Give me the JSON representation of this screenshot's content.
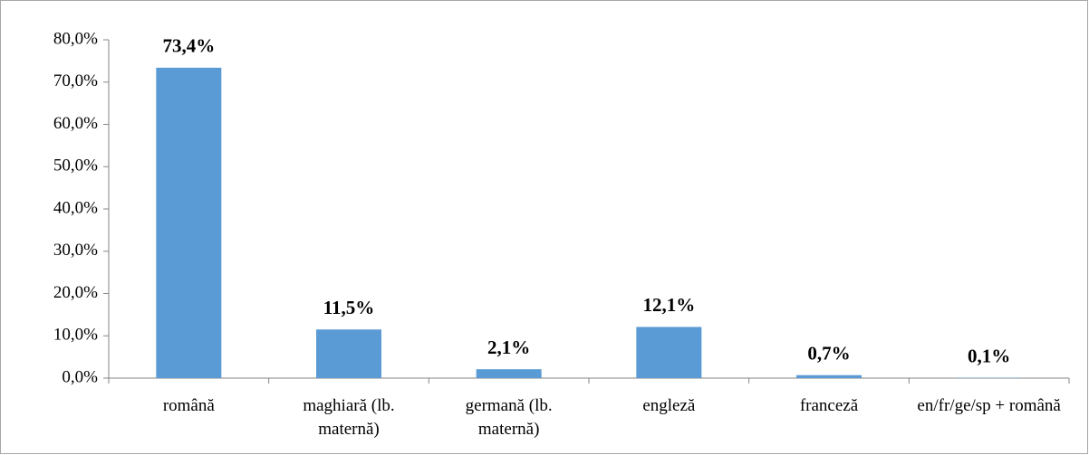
{
  "chart_data": {
    "type": "bar",
    "categories": [
      "română",
      "maghiară (lb. maternă)",
      "germană (lb. maternă)",
      "engleză",
      "franceză",
      "en/fr/ge/sp + română"
    ],
    "values": [
      73.4,
      11.5,
      2.1,
      12.1,
      0.7,
      0.1
    ],
    "value_labels": [
      "73,4%",
      "11,5%",
      "2,1%",
      "12,1%",
      "0,7%",
      "0,1%"
    ],
    "color": "#5b9bd5",
    "ylim": [
      0,
      80
    ],
    "yticks": [
      {
        "value": 0,
        "label": "0,0%"
      },
      {
        "value": 10,
        "label": "10,0%"
      },
      {
        "value": 20,
        "label": "20,0%"
      },
      {
        "value": 30,
        "label": "30,0%"
      },
      {
        "value": 40,
        "label": "40,0%"
      },
      {
        "value": 50,
        "label": "50,0%"
      },
      {
        "value": 60,
        "label": "60,0%"
      },
      {
        "value": 70,
        "label": "70,0%"
      },
      {
        "value": 80,
        "label": "80,0%"
      }
    ],
    "grid": false
  }
}
